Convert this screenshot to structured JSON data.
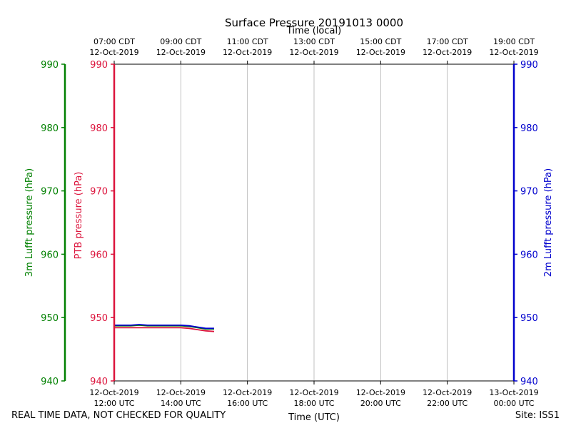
{
  "chart_data": {
    "type": "line",
    "title": "Surface Pressure 20191013 0000",
    "top_axis": {
      "label": "Time (local)",
      "ticks": [
        [
          "07:00 CDT",
          "12-Oct-2019"
        ],
        [
          "09:00 CDT",
          "12-Oct-2019"
        ],
        [
          "11:00 CDT",
          "12-Oct-2019"
        ],
        [
          "13:00 CDT",
          "12-Oct-2019"
        ],
        [
          "15:00 CDT",
          "12-Oct-2019"
        ],
        [
          "17:00 CDT",
          "12-Oct-2019"
        ],
        [
          "19:00 CDT",
          "12-Oct-2019"
        ]
      ]
    },
    "bottom_axis": {
      "label": "Time (UTC)",
      "ticks": [
        [
          "12-Oct-2019",
          "12:00 UTC"
        ],
        [
          "12-Oct-2019",
          "14:00 UTC"
        ],
        [
          "12-Oct-2019",
          "16:00 UTC"
        ],
        [
          "12-Oct-2019",
          "18:00 UTC"
        ],
        [
          "12-Oct-2019",
          "20:00 UTC"
        ],
        [
          "12-Oct-2019",
          "22:00 UTC"
        ],
        [
          "13-Oct-2019",
          "00:00 UTC"
        ]
      ],
      "xlim_hours_utc": [
        12,
        24
      ]
    },
    "y_axes": [
      {
        "label": "3m Lufft pressure (hPa)",
        "color": "#008000",
        "position": "far-left"
      },
      {
        "label": "PTB pressure (hPa)",
        "color": "#dc143c",
        "position": "left"
      },
      {
        "label": "2m Lufft pressure (hPa)",
        "color": "#0000cd",
        "position": "right"
      }
    ],
    "yticks": [
      990,
      980,
      970,
      960,
      950,
      940
    ],
    "ylim": [
      940,
      990
    ],
    "grid": "vertical",
    "series": [
      {
        "color": "#dc143c",
        "x_hours_utc": [
          12.0,
          12.25,
          12.5,
          12.75,
          13.0,
          13.25,
          13.5,
          13.75,
          14.0,
          14.25,
          14.5,
          14.75,
          15.0
        ],
        "y": [
          948.4,
          948.4,
          948.4,
          948.4,
          948.4,
          948.4,
          948.4,
          948.4,
          948.4,
          948.3,
          948.1,
          947.9,
          947.8
        ]
      },
      {
        "color": "#008000",
        "x_hours_utc": [
          12.0,
          12.25,
          12.5,
          12.75,
          13.0,
          13.25,
          13.5,
          13.75,
          14.0,
          14.25,
          14.5,
          14.75,
          15.0
        ],
        "y": [
          948.7,
          948.7,
          948.7,
          948.8,
          948.7,
          948.7,
          948.7,
          948.7,
          948.7,
          948.6,
          948.4,
          948.2,
          948.2
        ]
      },
      {
        "color": "#0000cd",
        "x_hours_utc": [
          12.0,
          12.25,
          12.5,
          12.75,
          13.0,
          13.25,
          13.5,
          13.75,
          14.0,
          14.25,
          14.5,
          14.75,
          15.0
        ],
        "y": [
          948.8,
          948.8,
          948.8,
          948.9,
          948.8,
          948.8,
          948.8,
          948.8,
          948.8,
          948.7,
          948.5,
          948.3,
          948.3
        ]
      }
    ]
  },
  "footer": {
    "left": "REAL TIME DATA, NOT CHECKED FOR QUALITY",
    "right": "Site: ISS1"
  }
}
